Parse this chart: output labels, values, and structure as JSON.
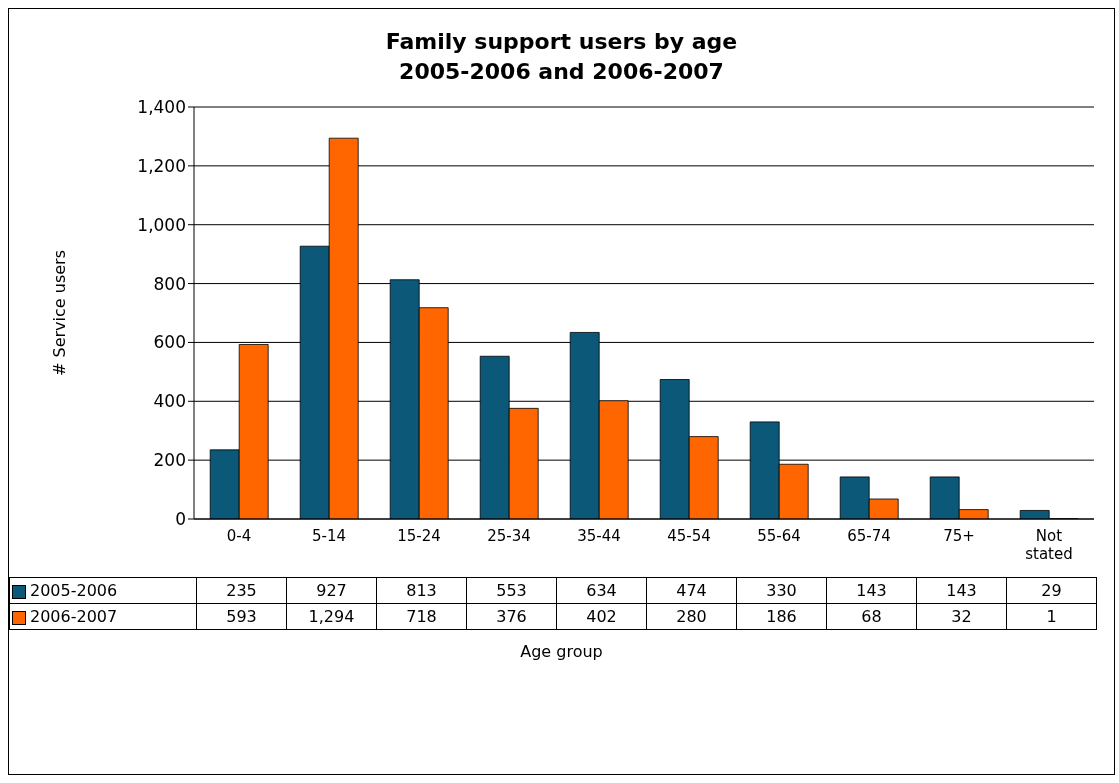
{
  "chart_data": {
    "type": "bar",
    "title": "Family support users by age\n2005-2006 and 2006-2007",
    "xlabel": "Age group",
    "ylabel": "# Service users",
    "categories": [
      "0-4",
      "5-14",
      "15-24",
      "25-34",
      "35-44",
      "45-54",
      "55-64",
      "65-74",
      "75+",
      "Not stated"
    ],
    "series": [
      {
        "name": "2005-2006",
        "color": "#0b5878",
        "values": [
          235,
          927,
          813,
          553,
          634,
          474,
          330,
          143,
          143,
          29
        ],
        "value_labels": [
          "235",
          "927",
          "813",
          "553",
          "634",
          "474",
          "330",
          "143",
          "143",
          "29"
        ]
      },
      {
        "name": "2006-2007",
        "color": "#ff6600",
        "values": [
          593,
          1294,
          718,
          376,
          402,
          280,
          186,
          68,
          32,
          1
        ],
        "value_labels": [
          "593",
          "1,294",
          "718",
          "376",
          "402",
          "280",
          "186",
          "68",
          "32",
          "1"
        ]
      }
    ],
    "ylim": [
      0,
      1400
    ],
    "yticks": [
      0,
      {
        "value": 200,
        "label": "200"
      },
      {
        "value": 400,
        "label": "400"
      },
      {
        "value": 600,
        "label": "600"
      },
      {
        "value": 800,
        "label": "800"
      },
      {
        "value": 1000,
        "label": "1,000"
      },
      {
        "value": 1200,
        "label": "1,200"
      },
      {
        "value": 1400,
        "label": "1,400"
      }
    ],
    "grid": "y",
    "legend": "left"
  }
}
